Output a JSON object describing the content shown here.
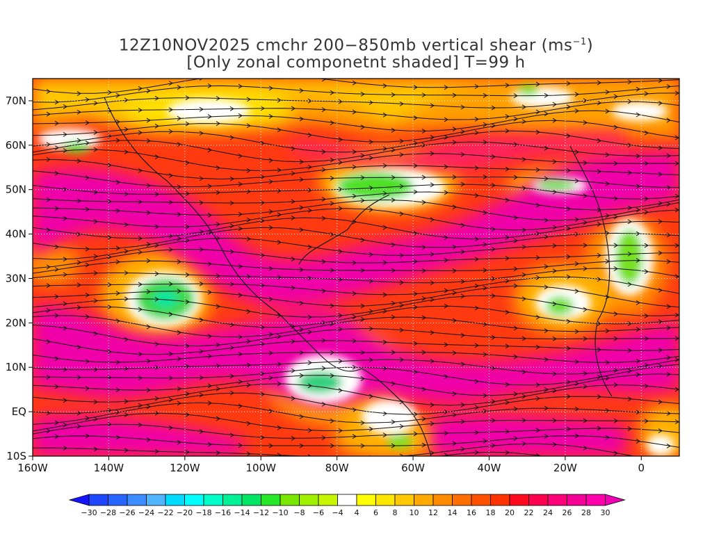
{
  "title": {
    "line1": "12Z10NOV2025 cmchr 200−850mb vertical shear (ms",
    "line1_unit_exp": "−1",
    "line1_end": ")",
    "line2": "[Only zonal componetnt shaded] T=99 h"
  },
  "map": {
    "lon_range": [
      -160,
      10
    ],
    "lat_range": [
      -10,
      75
    ],
    "x_ticks": [
      "160W",
      "140W",
      "120W",
      "100W",
      "80W",
      "60W",
      "40W",
      "20W",
      "0"
    ],
    "y_ticks": [
      "10S",
      "EQ",
      "10N",
      "20N",
      "30N",
      "40N",
      "50N",
      "60N",
      "70N"
    ],
    "grid": true,
    "overlay": "streamlines"
  },
  "colorbar": {
    "labels": [
      "−30",
      "−28",
      "−26",
      "−24",
      "−22",
      "−20",
      "−18",
      "−16",
      "−14",
      "−12",
      "−10",
      "−8",
      "−6",
      "−4",
      "4",
      "6",
      "8",
      "10",
      "12",
      "14",
      "16",
      "18",
      "20",
      "22",
      "24",
      "26",
      "28",
      "30"
    ],
    "colors": [
      "#1414ff",
      "#1e46ff",
      "#2864ff",
      "#3c8cff",
      "#50b4ff",
      "#00dcff",
      "#00ffff",
      "#00ffc8",
      "#00f096",
      "#00e664",
      "#28e628",
      "#78e600",
      "#a0f000",
      "#c8f500",
      "#ffffff",
      "#ffff00",
      "#ffe600",
      "#ffc800",
      "#ffaa00",
      "#ff8c00",
      "#ff6e00",
      "#ff5000",
      "#ff3200",
      "#ff0a1e",
      "#ff0050",
      "#ff0078",
      "#f50096",
      "#ff00aa",
      "#f000b4"
    ]
  }
}
